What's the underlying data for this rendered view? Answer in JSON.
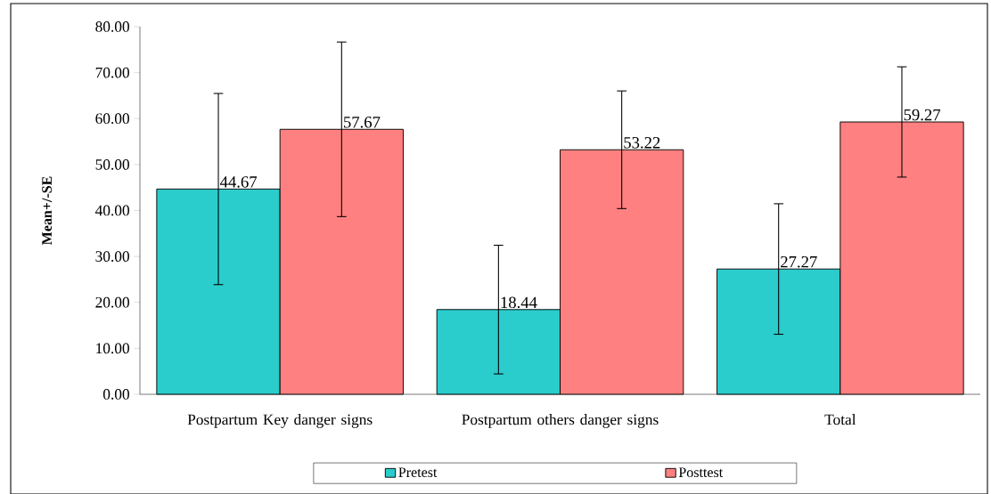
{
  "chart_data": {
    "type": "bar",
    "ylabel": "Mean+/-SE",
    "categories": [
      "Postpartum Key danger signs",
      "Postpartum others danger signs",
      "Total"
    ],
    "series": [
      {
        "name": "Pretest",
        "color": "#2acccc",
        "values": [
          44.67,
          18.44,
          27.27
        ],
        "errors": [
          20.8,
          14.0,
          14.2
        ]
      },
      {
        "name": "Posttest",
        "color": "#ff8080",
        "values": [
          57.67,
          53.22,
          59.27
        ],
        "errors": [
          19.0,
          12.8,
          12.0
        ]
      }
    ],
    "ylim": [
      0,
      80
    ],
    "yticks": [
      {
        "value": 0,
        "label": "0.00"
      },
      {
        "value": 10,
        "label": "10.00"
      },
      {
        "value": 20,
        "label": "20.00"
      },
      {
        "value": 30,
        "label": "30.00"
      },
      {
        "value": 40,
        "label": "40.00"
      },
      {
        "value": 50,
        "label": "50.00"
      },
      {
        "value": 60,
        "label": "60.00"
      },
      {
        "value": 70,
        "label": "70.00"
      },
      {
        "value": 80,
        "label": "80.00"
      }
    ],
    "data_labels": true,
    "legend": "bottom",
    "grid": false
  }
}
